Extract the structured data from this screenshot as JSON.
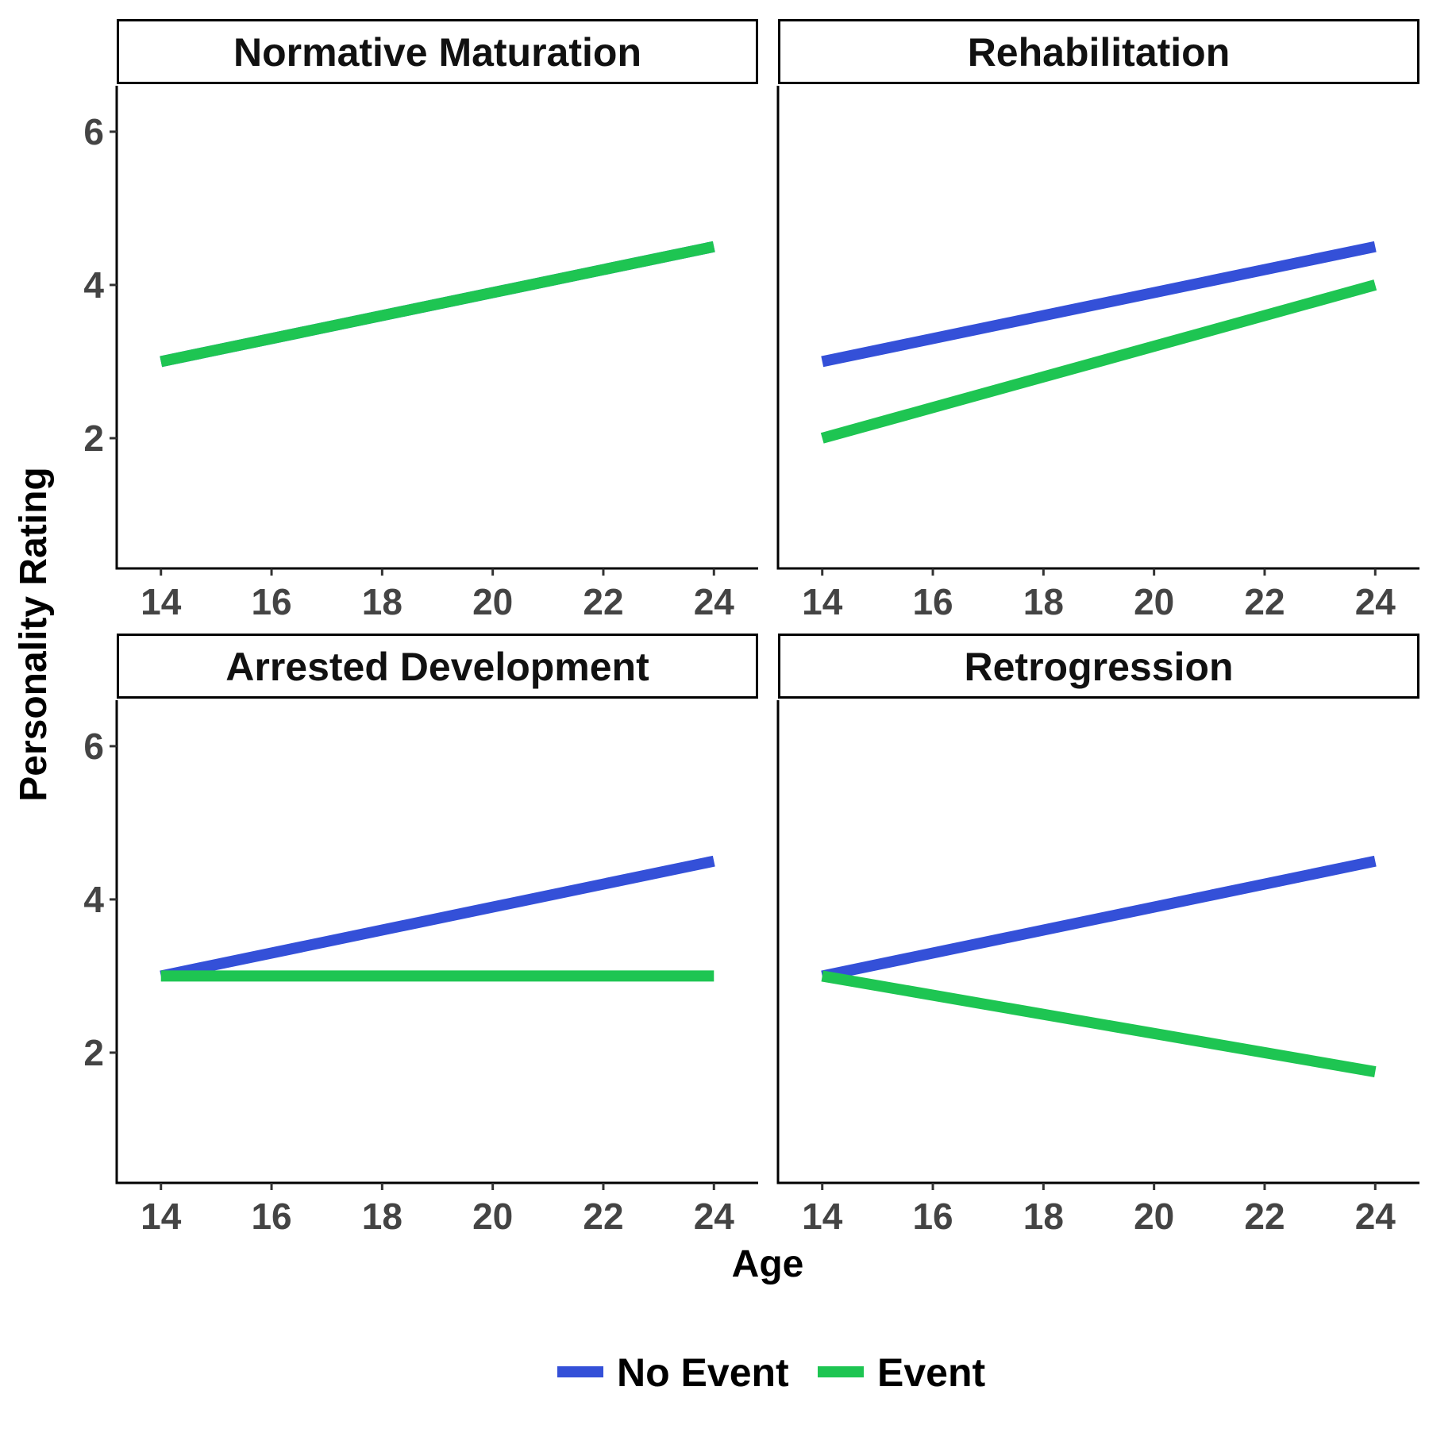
{
  "chart_data": {
    "type": "line",
    "xlabel": "Age",
    "ylabel": "Personality Rating",
    "xlim": [
      13.2,
      24.8
    ],
    "ylim": [
      0.3,
      6.6
    ],
    "x_ticks": [
      14,
      16,
      18,
      20,
      22,
      24
    ],
    "y_ticks": [
      2,
      4,
      6
    ],
    "grid": false,
    "legend_position": "bottom",
    "legend": [
      {
        "name": "No Event",
        "color": "#3450D8"
      },
      {
        "name": "Event",
        "color": "#1EC552"
      }
    ],
    "panels": [
      {
        "title": "Normative Maturation",
        "series": [
          {
            "name": "No Event",
            "x": [
              14,
              24
            ],
            "y": [
              3.0,
              4.5
            ]
          },
          {
            "name": "Event",
            "x": [
              14,
              24
            ],
            "y": [
              3.0,
              4.5
            ]
          }
        ]
      },
      {
        "title": "Rehabilitation",
        "series": [
          {
            "name": "No Event",
            "x": [
              14,
              24
            ],
            "y": [
              3.0,
              4.5
            ]
          },
          {
            "name": "Event",
            "x": [
              14,
              24
            ],
            "y": [
              2.0,
              4.0
            ]
          }
        ]
      },
      {
        "title": "Arrested Development",
        "series": [
          {
            "name": "No Event",
            "x": [
              14,
              24
            ],
            "y": [
              3.0,
              4.5
            ]
          },
          {
            "name": "Event",
            "x": [
              14,
              24
            ],
            "y": [
              3.0,
              3.0
            ]
          }
        ]
      },
      {
        "title": "Retrogression",
        "series": [
          {
            "name": "No Event",
            "x": [
              14,
              24
            ],
            "y": [
              3.0,
              4.5
            ]
          },
          {
            "name": "Event",
            "x": [
              14,
              24
            ],
            "y": [
              3.0,
              1.75
            ]
          }
        ]
      }
    ]
  }
}
